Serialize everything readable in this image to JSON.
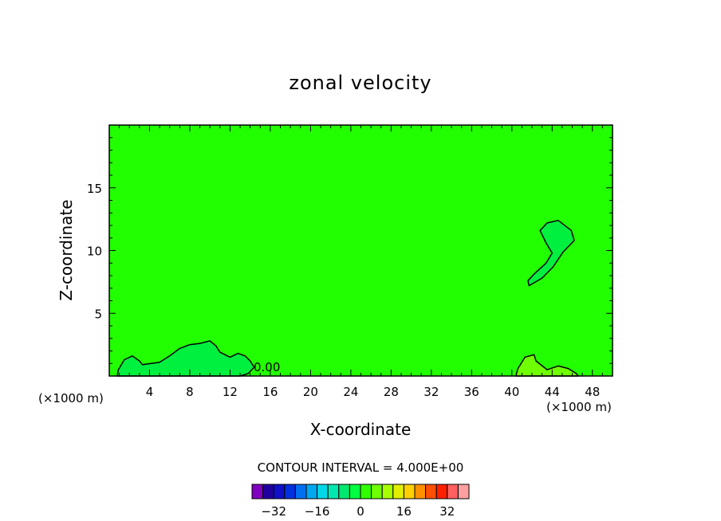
{
  "chart_data": {
    "type": "contour",
    "title": "zonal velocity",
    "xlabel": "X-coordinate",
    "ylabel": "Z-coordinate",
    "x_unit_left": "(×1000 m)",
    "x_unit_right": "(×1000 m)",
    "xlim": [
      0,
      50
    ],
    "ylim": [
      0,
      20
    ],
    "x_ticks": [
      4,
      8,
      12,
      16,
      20,
      24,
      28,
      32,
      36,
      40,
      44,
      48
    ],
    "y_ticks": [
      5,
      10,
      15
    ],
    "contour_label": "0.00",
    "contour_interval_text": "CONTOUR INTERVAL = 4.000E+00",
    "background_color": "#22ff00",
    "colorbar": {
      "colors": [
        "#8000c0",
        "#2000a0",
        "#1010c8",
        "#0030e0",
        "#0070f0",
        "#00a8f0",
        "#00d8e8",
        "#00e8b0",
        "#00e870",
        "#00ff40",
        "#30ff00",
        "#70ff00",
        "#a8ff00",
        "#e0f000",
        "#ffd000",
        "#ff9000",
        "#ff5000",
        "#ff2000",
        "#ff6060",
        "#ffa0a0"
      ],
      "tick_labels": [
        "−32",
        "−16",
        "0",
        "16",
        "32"
      ],
      "tick_values": [
        -32,
        -16,
        0,
        16,
        32
      ],
      "range": [
        -40,
        40
      ]
    },
    "regions": [
      {
        "name": "upper-right-positive-cell",
        "fill": "#00f040",
        "outline": [
          [
            43.5,
            12.2
          ],
          [
            44.6,
            12.4
          ],
          [
            45.9,
            11.6
          ],
          [
            46.2,
            10.8
          ],
          [
            45.1,
            9.9
          ],
          [
            44.1,
            8.7
          ],
          [
            43.0,
            7.8
          ],
          [
            41.7,
            7.2
          ],
          [
            41.6,
            7.6
          ],
          [
            42.3,
            8.2
          ],
          [
            43.4,
            9.0
          ],
          [
            44.0,
            9.8
          ],
          [
            43.4,
            10.6
          ],
          [
            42.8,
            11.6
          ]
        ]
      },
      {
        "name": "low-level-band",
        "fill": "#00f040",
        "outline": [
          [
            0.8,
            0
          ],
          [
            0.9,
            0.5
          ],
          [
            1.5,
            1.3
          ],
          [
            2.3,
            1.6
          ],
          [
            3.0,
            1.2
          ],
          [
            3.3,
            0.9
          ],
          [
            5.0,
            1.1
          ],
          [
            6.0,
            1.6
          ],
          [
            7.0,
            2.2
          ],
          [
            8.0,
            2.5
          ],
          [
            9.0,
            2.6
          ],
          [
            10.0,
            2.8
          ],
          [
            10.6,
            2.4
          ],
          [
            11.0,
            1.9
          ],
          [
            12.0,
            1.5
          ],
          [
            12.8,
            1.8
          ],
          [
            13.5,
            1.6
          ],
          [
            14.0,
            1.2
          ],
          [
            14.4,
            0.7
          ],
          [
            13.8,
            0.2
          ],
          [
            13.0,
            0
          ]
        ]
      },
      {
        "name": "right-low-positive-cell",
        "fill": "#70ff00",
        "outline": [
          [
            40.4,
            0
          ],
          [
            40.6,
            0.6
          ],
          [
            41.3,
            1.5
          ],
          [
            42.2,
            1.7
          ],
          [
            42.4,
            1.2
          ],
          [
            43.5,
            0.5
          ],
          [
            44.6,
            0.8
          ],
          [
            45.6,
            0.6
          ],
          [
            46.4,
            0.2
          ],
          [
            46.6,
            0
          ]
        ]
      }
    ]
  }
}
